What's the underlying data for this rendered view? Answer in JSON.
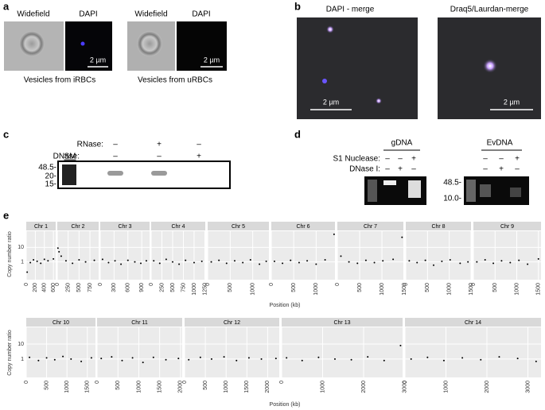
{
  "panel_a": {
    "label": "a",
    "columns": [
      "Widefield",
      "DAPI",
      "Widefield",
      "DAPI"
    ],
    "captions": [
      "Vesicles from iRBCs",
      "Vesicles from uRBCs"
    ],
    "scale_bars": [
      "2 µm",
      "2 µm"
    ]
  },
  "panel_b": {
    "label": "b",
    "titles": [
      "DAPI - merge",
      "Draq5/Laurdan-merge"
    ],
    "scale_bars": [
      "2 µm",
      "2 µm"
    ]
  },
  "panel_c": {
    "label": "c",
    "rows": [
      {
        "name": "RNase:",
        "signs": [
          "–",
          "+",
          "–"
        ]
      },
      {
        "name": "DNase:",
        "signs": [
          "–",
          "–",
          "+"
        ]
      }
    ],
    "ladder": "SM",
    "markers": [
      "48.5-",
      "20-",
      "15-"
    ]
  },
  "panel_d": {
    "label": "d",
    "groups": [
      "gDNA",
      "EvDNA"
    ],
    "rows": [
      {
        "name": "S1 Nuclease:",
        "signs": [
          "–",
          "–",
          "+",
          "–",
          "–",
          "+"
        ]
      },
      {
        "name": "DNase I:",
        "signs": [
          "–",
          "+",
          "–",
          "–",
          "+",
          "–"
        ]
      }
    ],
    "markers": [
      "48.5-",
      "10.0-"
    ]
  },
  "panel_e": {
    "label": "e",
    "y_label": "Copy number ratio",
    "x_label": "Position (kb)"
  },
  "chart_data": [
    {
      "type": "scatter",
      "title": "Chr 1",
      "x": [
        20,
        90,
        160,
        240,
        320,
        400,
        480,
        600
      ],
      "values": [
        0.2,
        0.9,
        1.4,
        1.1,
        0.8,
        1.5,
        1.2,
        1.6
      ],
      "xlim": [
        0,
        650
      ],
      "xticks": [
        0,
        200,
        400,
        600
      ],
      "ylim": [
        0.06,
        130
      ],
      "yticks": [
        1,
        10
      ],
      "log_y": true,
      "color": "#000000"
    },
    {
      "type": "scatter",
      "title": "Chr 2",
      "x": [
        15,
        40,
        90,
        200,
        350,
        500,
        650,
        850
      ],
      "values": [
        9,
        5,
        2.5,
        1.2,
        0.8,
        1.4,
        1,
        1.3
      ],
      "xlim": [
        0,
        950
      ],
      "xticks": [
        0,
        250,
        500,
        750
      ],
      "ylim": [
        0.06,
        130
      ],
      "yticks": [
        1,
        10
      ],
      "log_y": true,
      "color": "#000000"
    },
    {
      "type": "scatter",
      "title": "Chr 3",
      "x": [
        50,
        180,
        320,
        450,
        600,
        750,
        880,
        1000
      ],
      "values": [
        1.5,
        0.9,
        1.2,
        0.7,
        1.3,
        1,
        0.8,
        1.2
      ],
      "xlim": [
        0,
        1070
      ],
      "xticks": [
        0,
        300,
        600,
        900
      ],
      "ylim": [
        0.06,
        130
      ],
      "yticks": [
        1,
        10
      ],
      "log_y": true,
      "color": "#000000"
    },
    {
      "type": "scatter",
      "title": "Chr 4",
      "x": [
        60,
        200,
        350,
        500,
        650,
        800,
        1000,
        1180
      ],
      "values": [
        1.2,
        0.8,
        1.5,
        1,
        0.7,
        1.3,
        0.9,
        1.1
      ],
      "xlim": [
        0,
        1260
      ],
      "xticks": [
        0,
        250,
        500,
        750,
        1000,
        1250
      ],
      "ylim": [
        0.06,
        130
      ],
      "yticks": [
        1,
        10
      ],
      "log_y": true,
      "color": "#000000"
    },
    {
      "type": "scatter",
      "title": "Chr 5",
      "x": [
        80,
        250,
        420,
        600,
        780,
        950,
        1150,
        1300
      ],
      "values": [
        1,
        1.3,
        0.8,
        1.2,
        0.9,
        1.4,
        0.7,
        1.1
      ],
      "xlim": [
        0,
        1360
      ],
      "xticks": [
        0,
        500,
        1000
      ],
      "ylim": [
        0.06,
        130
      ],
      "yticks": [
        1,
        10
      ],
      "log_y": true,
      "color": "#000000"
    },
    {
      "type": "scatter",
      "title": "Chr 6",
      "x": [
        70,
        250,
        430,
        620,
        800,
        1000,
        1200,
        1400
      ],
      "values": [
        1.1,
        0.8,
        1.3,
        0.9,
        1.2,
        0.7,
        1.4,
        80
      ],
      "xlim": [
        0,
        1420
      ],
      "xticks": [
        0,
        500,
        1000
      ],
      "ylim": [
        0.06,
        130
      ],
      "yticks": [
        1,
        10
      ],
      "log_y": true,
      "color": "#000000"
    },
    {
      "type": "scatter",
      "title": "Chr 7",
      "x": [
        80,
        260,
        450,
        640,
        830,
        1020,
        1250,
        1450
      ],
      "values": [
        2.5,
        1,
        0.8,
        1.3,
        0.9,
        1.2,
        1.5,
        50
      ],
      "xlim": [
        0,
        1480
      ],
      "xticks": [
        0,
        500,
        1000,
        1500
      ],
      "ylim": [
        0.06,
        130
      ],
      "yticks": [
        1,
        10
      ],
      "log_y": true,
      "color": "#000000"
    },
    {
      "type": "scatter",
      "title": "Chr 8",
      "x": [
        80,
        260,
        450,
        640,
        830,
        1020,
        1250,
        1430
      ],
      "values": [
        1.2,
        0.9,
        1.3,
        0.6,
        1.1,
        1.4,
        0.8,
        1
      ],
      "xlim": [
        0,
        1500
      ],
      "xticks": [
        0,
        500,
        1000,
        1500
      ],
      "ylim": [
        0.06,
        130
      ],
      "yticks": [
        1,
        10
      ],
      "log_y": true,
      "color": "#000000"
    },
    {
      "type": "scatter",
      "title": "Chr 9",
      "x": [
        80,
        270,
        460,
        650,
        850,
        1050,
        1250,
        1500
      ],
      "values": [
        1,
        1.4,
        0.8,
        1.2,
        0.9,
        1.3,
        0.7,
        1.6
      ],
      "xlim": [
        0,
        1560
      ],
      "xticks": [
        0,
        500,
        1000,
        1500
      ],
      "ylim": [
        0.06,
        130
      ],
      "yticks": [
        1,
        10
      ],
      "log_y": true,
      "color": "#000000"
    },
    {
      "type": "scatter",
      "title": "Chr 10",
      "x": [
        80,
        300,
        500,
        700,
        900,
        1100,
        1350,
        1600
      ],
      "values": [
        1.3,
        0.8,
        1.2,
        0.9,
        1.5,
        1,
        0.7,
        1.2
      ],
      "xlim": [
        0,
        1700
      ],
      "xticks": [
        0,
        500,
        1000,
        1500
      ],
      "ylim": [
        0.06,
        130
      ],
      "yticks": [
        1,
        10
      ],
      "log_y": true,
      "color": "#000000"
    },
    {
      "type": "scatter",
      "title": "Chr 11",
      "x": [
        100,
        350,
        600,
        850,
        1100,
        1350,
        1650,
        1950
      ],
      "values": [
        1.1,
        1.4,
        0.8,
        1.2,
        0.6,
        1.3,
        0.9,
        1.1
      ],
      "xlim": [
        0,
        2040
      ],
      "xticks": [
        0,
        500,
        1000,
        1500,
        2000
      ],
      "ylim": [
        0.06,
        130
      ],
      "yticks": [
        1,
        10
      ],
      "log_y": true,
      "color": "#000000"
    },
    {
      "type": "scatter",
      "title": "Chr 12",
      "x": [
        100,
        380,
        650,
        950,
        1250,
        1550,
        1850,
        2200
      ],
      "values": [
        0.9,
        1.3,
        1,
        1.4,
        0.8,
        1.2,
        1,
        1.1
      ],
      "xlim": [
        0,
        2280
      ],
      "xticks": [
        0,
        500,
        1000,
        1500,
        2000
      ],
      "ylim": [
        0.06,
        130
      ],
      "yticks": [
        1,
        10
      ],
      "log_y": true,
      "color": "#000000"
    },
    {
      "type": "scatter",
      "title": "Chr 13",
      "x": [
        120,
        500,
        900,
        1300,
        1700,
        2100,
        2500,
        2900
      ],
      "values": [
        1.2,
        0.8,
        1.3,
        1,
        0.9,
        1.4,
        0.8,
        8
      ],
      "xlim": [
        0,
        2950
      ],
      "xticks": [
        0,
        1000,
        2000,
        3000
      ],
      "ylim": [
        0.06,
        130
      ],
      "yticks": [
        1,
        10
      ],
      "log_y": true,
      "color": "#000000"
    },
    {
      "type": "scatter",
      "title": "Chr 14",
      "x": [
        150,
        550,
        950,
        1400,
        1850,
        2300,
        2750,
        3200
      ],
      "values": [
        1,
        1.3,
        0.8,
        1.2,
        0.9,
        1.4,
        1.1,
        0.7
      ],
      "xlim": [
        0,
        3320
      ],
      "xticks": [
        0,
        1000,
        2000,
        3000
      ],
      "ylim": [
        0.06,
        130
      ],
      "yticks": [
        1,
        10
      ],
      "log_y": true,
      "color": "#000000"
    }
  ]
}
